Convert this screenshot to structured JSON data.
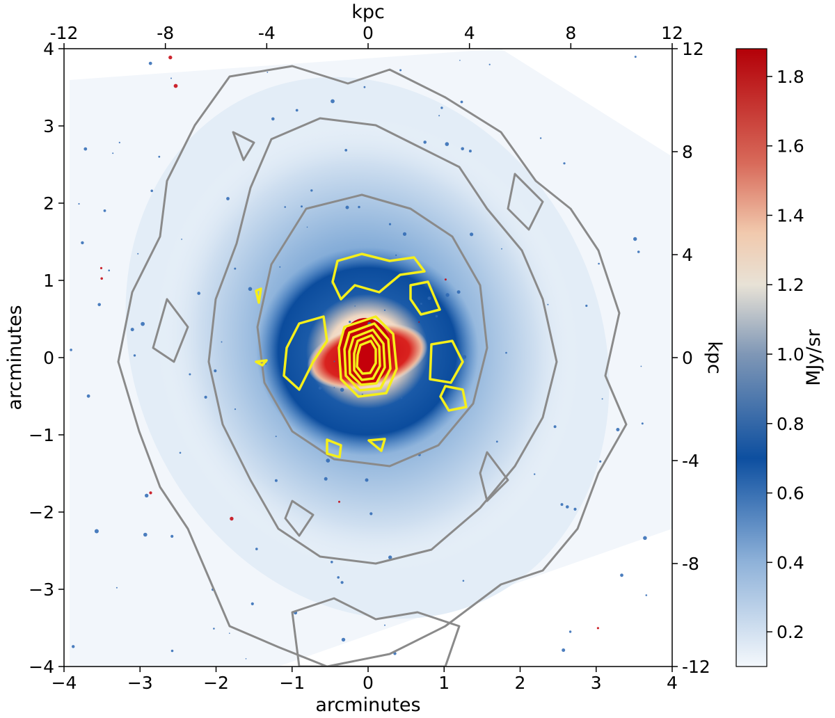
{
  "chart_data": {
    "type": "heatmap",
    "title": "",
    "xlabel": "arcminutes",
    "ylabel": "arcminutes",
    "top_xlabel": "kpc",
    "right_ylabel": "kpc",
    "colorbar_label": "MJy/sr",
    "xlim": [
      -4,
      4
    ],
    "ylim": [
      -4,
      4
    ],
    "kpc_lim": [
      -12,
      12
    ],
    "x_ticks": [
      -4,
      -3,
      -2,
      -1,
      0,
      1,
      2,
      3,
      4
    ],
    "x_tick_labels": [
      "−4",
      "−3",
      "−2",
      "−1",
      "0",
      "1",
      "2",
      "3",
      "4"
    ],
    "y_ticks": [
      -4,
      -3,
      -2,
      -1,
      0,
      1,
      2,
      3,
      4
    ],
    "y_tick_labels": [
      "−4",
      "−3",
      "−2",
      "−1",
      "0",
      "1",
      "2",
      "3",
      "4"
    ],
    "kpc_ticks": [
      -12,
      -8,
      -4,
      0,
      4,
      8,
      12
    ],
    "kpc_tick_labels": [
      "-12",
      "-8",
      "-4",
      "0",
      "4",
      "8",
      "12"
    ],
    "colorbar_range": [
      0.1,
      1.88
    ],
    "colorbar_ticks": [
      0.2,
      0.4,
      0.6,
      0.8,
      1.0,
      1.2,
      1.4,
      1.6,
      1.8
    ],
    "colorbar_tick_labels": [
      "0.2",
      "0.4",
      "0.6",
      "0.8",
      "1.0",
      "1.2",
      "1.4",
      "1.6",
      "1.8"
    ],
    "colormap_stops": [
      {
        "value": 0.1,
        "color": "#f4f8fc"
      },
      {
        "value": 0.4,
        "color": "#8fb2d9"
      },
      {
        "value": 0.7,
        "color": "#0d4fa0"
      },
      {
        "value": 1.0,
        "color": "#7f97b6"
      },
      {
        "value": 1.2,
        "color": "#e8e2d6"
      },
      {
        "value": 1.35,
        "color": "#f1c9ad"
      },
      {
        "value": 1.55,
        "color": "#d86a5a"
      },
      {
        "value": 1.88,
        "color": "#b30008"
      }
    ],
    "contour_colors": {
      "gray": "#8a8a8a",
      "yellow": "#f5ef1a"
    },
    "image_colors": {
      "background": "#f2f6fb",
      "halo": "#c7d9ee",
      "disk": "#5b8ecb",
      "ring": "#1155a8",
      "core": "#d3000a"
    }
  }
}
